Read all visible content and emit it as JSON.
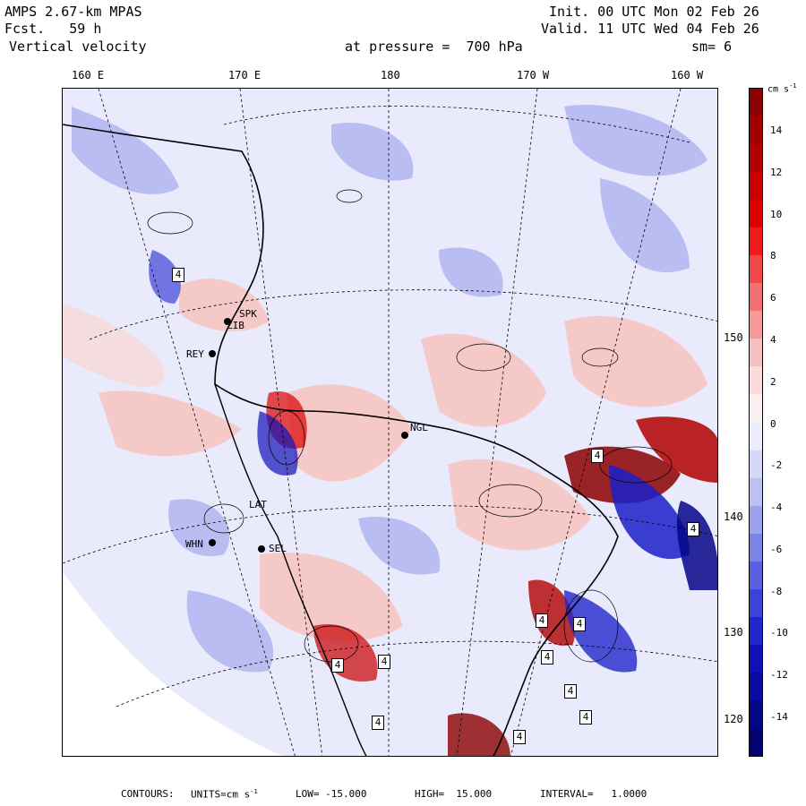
{
  "header": {
    "model": "AMPS 2.67-km MPAS",
    "forecast": "Fcst.   59 h",
    "field": "Vertical velocity",
    "init": "Init. 00 UTC Mon 02 Feb 26",
    "valid": "Valid. 11 UTC Wed 04 Feb 26",
    "pressure": "at pressure =  700 hPa",
    "smoothing": "sm= 6"
  },
  "longitude_labels": [
    "160 E",
    "170 E",
    "180",
    "170 W",
    "160 W"
  ],
  "latitude_labels": [
    "150 W",
    "140 W",
    "130 W",
    "120 W"
  ],
  "stations": [
    "ZIB",
    "SPK",
    "REY",
    "NGL",
    "LAT",
    "WHN",
    "SEL"
  ],
  "contour_box_label": "4",
  "colorbar": {
    "unit": "cm s",
    "unit_exp": "-1",
    "ticks": [
      "14",
      "12",
      "10",
      "8",
      "6",
      "4",
      "2",
      "0",
      "-2",
      "-4",
      "-6",
      "-8",
      "-10",
      "-12",
      "-14"
    ],
    "colors": [
      "#8b0000",
      "#a20000",
      "#b40000",
      "#c80000",
      "#dc0000",
      "#ef1a1a",
      "#f24848",
      "#f37070",
      "#f59a9a",
      "#f7c0c0",
      "#fadcdc",
      "#fdf0f0",
      "#ecedfb",
      "#d6d8f7",
      "#bcc0f2",
      "#9ca2ec",
      "#7c82e6",
      "#5a60df",
      "#3d43d8",
      "#2227cc",
      "#1010b8",
      "#0a0aa0",
      "#050588",
      "#020270"
    ]
  },
  "footer": {
    "contours": "CONTOURS:",
    "units": "UNITS=cm s",
    "units_exp": "-1",
    "low": "LOW= -15.000",
    "high": "HIGH=  15.000",
    "interval": "INTERVAL=   1.0000"
  },
  "colors": {
    "background_field": "#e9eafb",
    "positive": "#f6c9c9",
    "negative": "#b9bdf1",
    "strong_positive": "#b00000",
    "strong_negative": "#1a1fc8",
    "land_mask": "#ffffff"
  }
}
